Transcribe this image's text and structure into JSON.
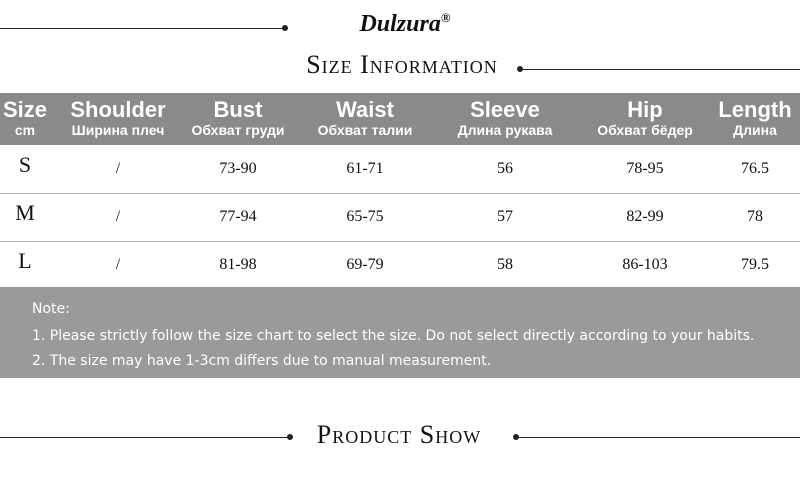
{
  "brand": "Dulzura",
  "brand_mark": "®",
  "size_heading": "Size Information",
  "table": {
    "header": [
      {
        "en": "Size",
        "ru": "cm"
      },
      {
        "en": "Shoulder",
        "ru": "Ширина плеч"
      },
      {
        "en": "Bust",
        "ru": "Обхват груди"
      },
      {
        "en": "Waist",
        "ru": "Обхват талии"
      },
      {
        "en": "Sleeve",
        "ru": "Длина рукава"
      },
      {
        "en": "Hip",
        "ru": "Обхват бёдер"
      },
      {
        "en": "Length",
        "ru": "Длина"
      }
    ],
    "rows": [
      [
        "S",
        "/",
        "73-90",
        "61-71",
        "56",
        "78-95",
        "76.5"
      ],
      [
        "M",
        "/",
        "77-94",
        "65-75",
        "57",
        "82-99",
        "78"
      ],
      [
        "L",
        "/",
        "81-98",
        "69-79",
        "58",
        "86-103",
        "79.5"
      ]
    ]
  },
  "note": {
    "title": "Note:",
    "lines": [
      "1. Please strictly follow the size chart to select the size. Do not select directly according to your habits.",
      "2. The size may have 1-3cm differs due to manual measurement."
    ]
  },
  "show_heading": "Product Show"
}
